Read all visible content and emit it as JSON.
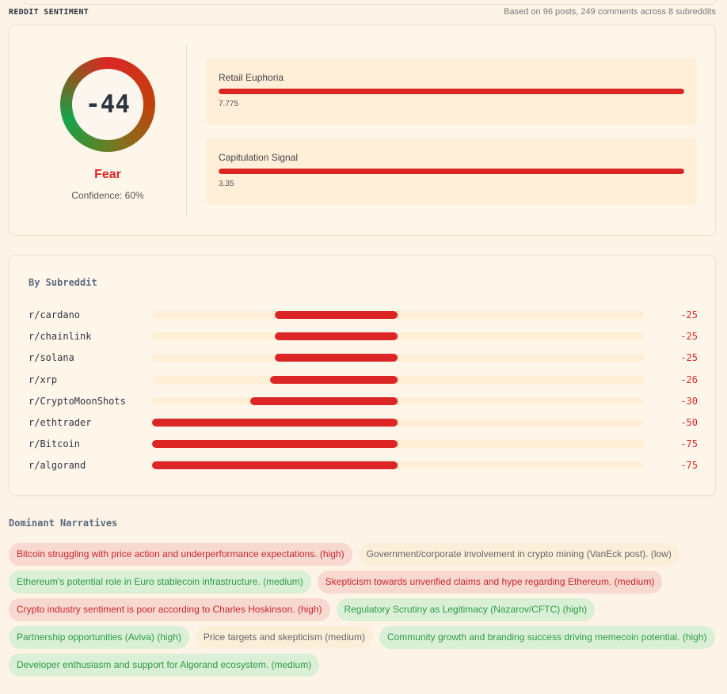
{
  "header": {
    "title": "REDDIT SENTIMENT",
    "meta": "Based on 96 posts, 249 comments across 8 subreddits"
  },
  "sentiment": {
    "score": "-44",
    "label": "Fear",
    "confidence": "Confidence: 60%",
    "colors": {
      "negative": "#dc2626",
      "positive": "#16a34a"
    }
  },
  "metrics": [
    {
      "label": "Retail Euphoria",
      "value": "7.775",
      "fill_pct": 100
    },
    {
      "label": "Capitulation Signal",
      "value": "3.35",
      "fill_pct": 100
    }
  ],
  "by_subreddit": {
    "title": "By Subreddit",
    "rows": [
      {
        "name": "r/cardano",
        "score": -25
      },
      {
        "name": "r/chainlink",
        "score": -25
      },
      {
        "name": "r/solana",
        "score": -25
      },
      {
        "name": "r/xrp",
        "score": -26
      },
      {
        "name": "r/CryptoMoonShots",
        "score": -30
      },
      {
        "name": "r/ethtrader",
        "score": -50
      },
      {
        "name": "r/Bitcoin",
        "score": -75
      },
      {
        "name": "r/algorand",
        "score": -75
      }
    ]
  },
  "narratives": {
    "title": "Dominant Narratives",
    "items": [
      {
        "text": "Bitcoin struggling with price action and underperformance expectations. (high)",
        "tone": "neg"
      },
      {
        "text": "Government/corporate involvement in crypto mining (VanEck post). (low)",
        "tone": "neu"
      },
      {
        "text": "Ethereum's potential role in Euro stablecoin infrastructure. (medium)",
        "tone": "pos"
      },
      {
        "text": "Skepticism towards unverified claims and hype regarding Ethereum. (medium)",
        "tone": "neg"
      },
      {
        "text": "Crypto industry sentiment is poor according to Charles Hoskinson. (high)",
        "tone": "neg"
      },
      {
        "text": "Regulatory Scrutiny as Legitimacy (Nazarov/CFTC) (high)",
        "tone": "pos"
      },
      {
        "text": "Partnership opportunities (Aviva) (high)",
        "tone": "pos"
      },
      {
        "text": "Price targets and skepticism (medium)",
        "tone": "neu"
      },
      {
        "text": "Community growth and branding success driving memecoin potential. (high)",
        "tone": "pos"
      },
      {
        "text": "Developer enthusiasm and support for Algorand ecosystem. (medium)",
        "tone": "pos"
      }
    ]
  }
}
